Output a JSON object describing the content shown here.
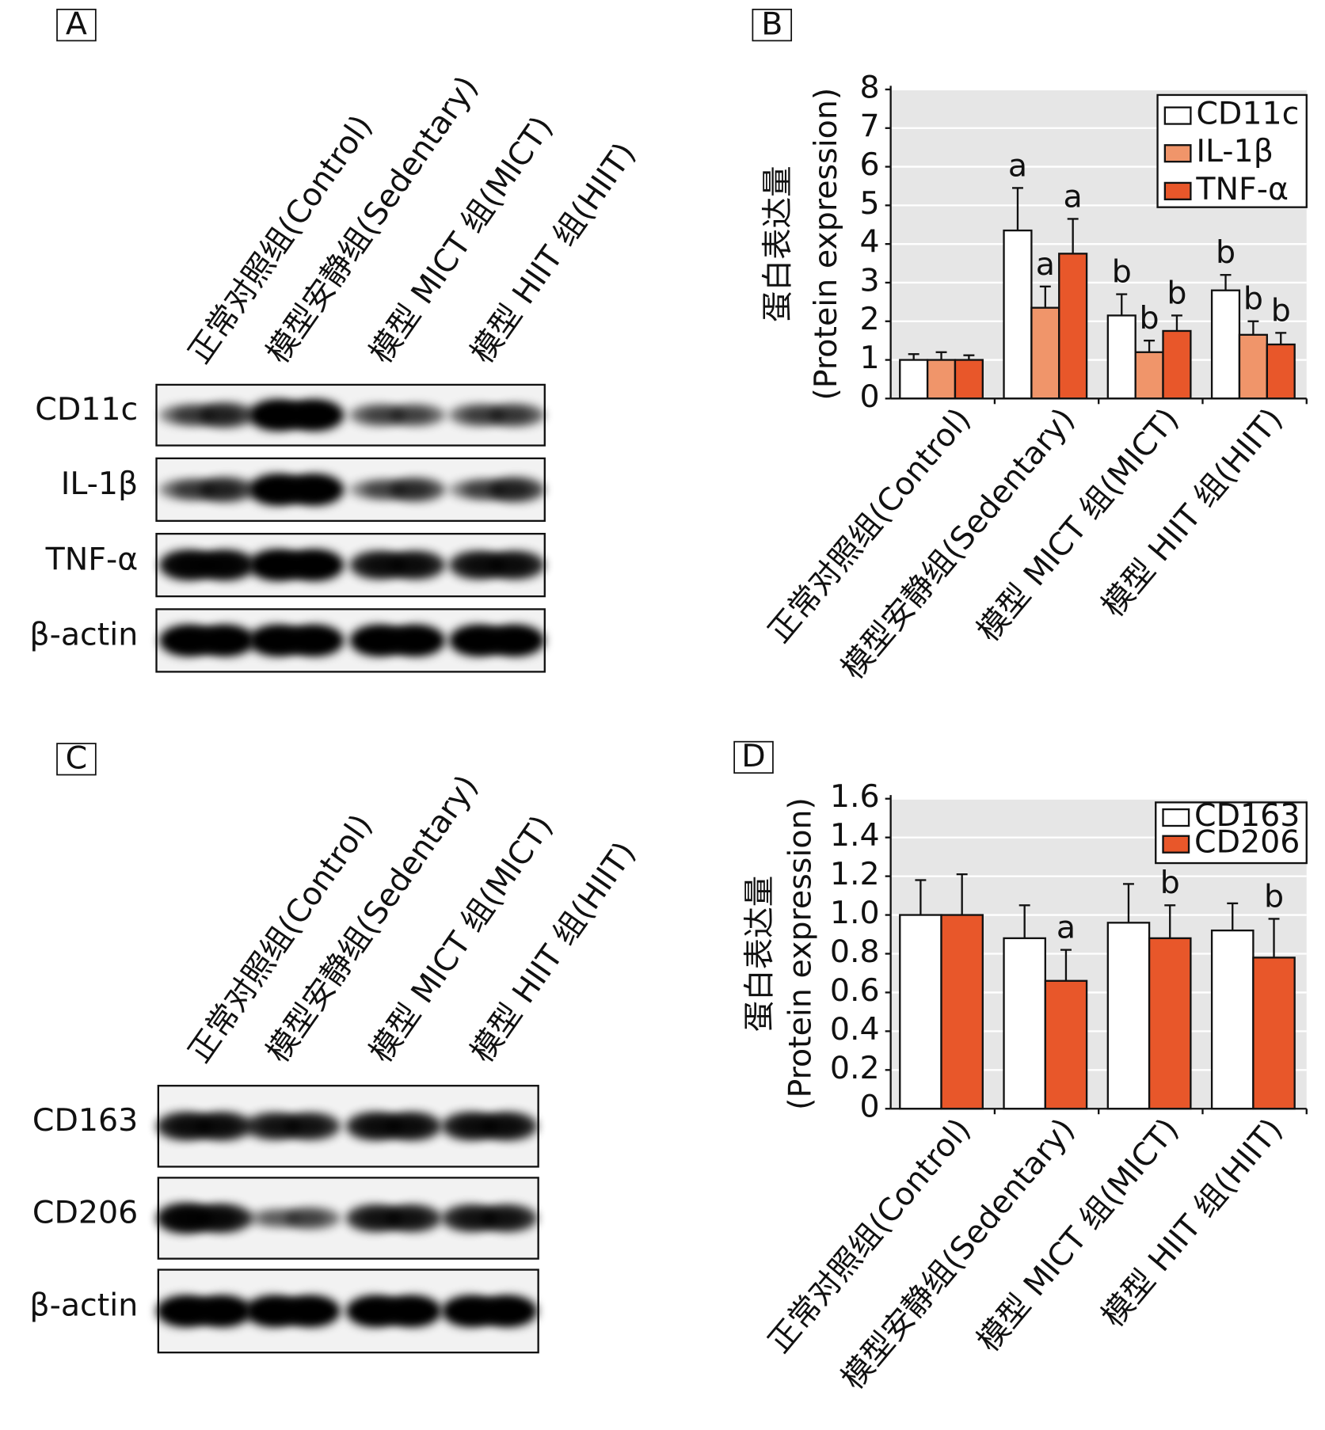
{
  "blots": [
    {
      "panel": "A",
      "lanes": [
        "正常对照组(Control)",
        "模型安静组(Sedentary)",
        "模型 MICT 组(MICT)",
        "模型 HIIT 组(HIIT)"
      ],
      "proteins": [
        "CD11c",
        "IL-1β",
        "TNF-α",
        "β-actin"
      ]
    },
    {
      "panel": "C",
      "lanes": [
        "正常对照组(Control)",
        "模型安静组(Sedentary)",
        "模型 MICT 组(MICT)",
        "模型 HIIT 组(HIIT)"
      ],
      "proteins": [
        "CD163",
        "CD206",
        "β-actin"
      ]
    }
  ],
  "chart_data": [
    {
      "type": "bar",
      "panel": "B",
      "ylabel": "蛋白表达量",
      "ylabel_en": "(Protein expression)",
      "categories": [
        "正常对照组(Control)",
        "模型安静组(Sedentary)",
        "模型 MICT 组(MICT)",
        "模型 HIIT 组(HIIT)"
      ],
      "series": [
        {
          "name": "CD11c",
          "color": "#ffffff",
          "values": [
            1.0,
            4.35,
            2.15,
            2.8
          ],
          "errors": [
            0.15,
            1.1,
            0.55,
            0.4
          ],
          "labels": [
            null,
            "a",
            "b",
            "b"
          ]
        },
        {
          "name": "IL-1β",
          "color": "#f0956a",
          "values": [
            1.0,
            2.35,
            1.2,
            1.65
          ],
          "errors": [
            0.2,
            0.55,
            0.3,
            0.35
          ],
          "labels": [
            null,
            "a",
            "b",
            "b"
          ]
        },
        {
          "name": "TNF-α",
          "color": "#e8572a",
          "values": [
            1.0,
            3.75,
            1.75,
            1.4
          ],
          "errors": [
            0.12,
            0.9,
            0.4,
            0.3
          ],
          "labels": [
            null,
            "a",
            "b",
            "b"
          ]
        }
      ],
      "ylim": [
        0,
        8
      ],
      "yticks": [
        0,
        1,
        2,
        3,
        4,
        5,
        6,
        7,
        8
      ],
      "grid": true,
      "legend": "top-right"
    },
    {
      "type": "bar",
      "panel": "D",
      "ylabel": "蛋白表达量",
      "ylabel_en": "(Protein expression)",
      "categories": [
        "正常对照组(Control)",
        "模型安静组(Sedentary)",
        "模型 MICT 组(MICT)",
        "模型 HIIT 组(HIIT)"
      ],
      "series": [
        {
          "name": "CD163",
          "color": "#ffffff",
          "values": [
            1.0,
            0.88,
            0.96,
            0.92
          ],
          "errors": [
            0.18,
            0.17,
            0.2,
            0.14
          ],
          "labels": [
            null,
            null,
            null,
            null
          ]
        },
        {
          "name": "CD206",
          "color": "#e8572a",
          "values": [
            1.0,
            0.66,
            0.88,
            0.78
          ],
          "errors": [
            0.21,
            0.16,
            0.17,
            0.2
          ],
          "labels": [
            null,
            "a",
            "b",
            "b"
          ]
        }
      ],
      "ylim": [
        0,
        1.6
      ],
      "yticks": [
        0,
        0.2,
        0.4,
        0.6,
        0.8,
        {
          "value": 1,
          "label": "1.0"
        },
        1.2,
        1.4,
        1.6
      ],
      "grid": true,
      "legend": "top-right"
    }
  ]
}
